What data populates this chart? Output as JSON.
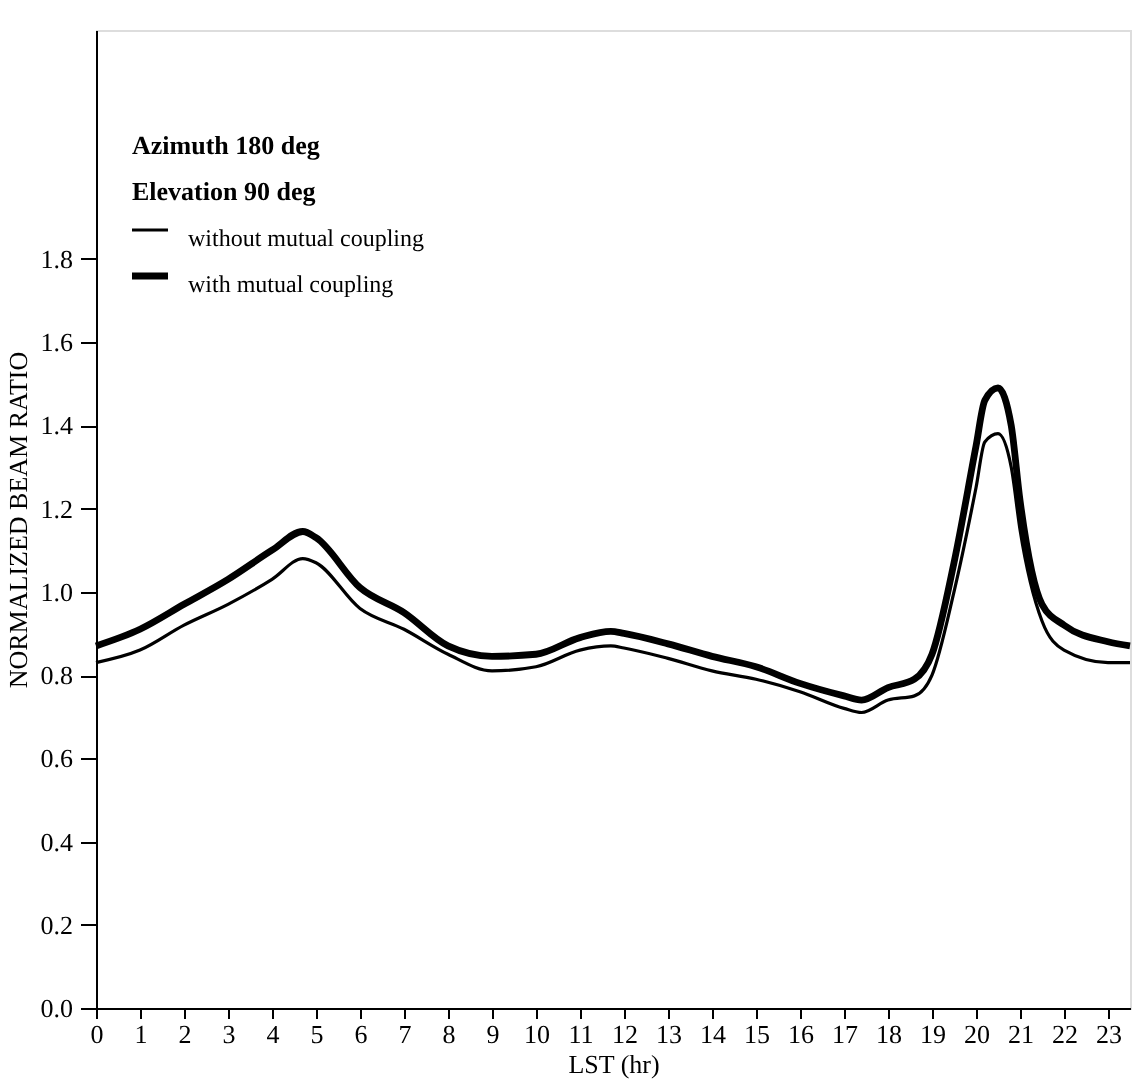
{
  "chart_data": {
    "type": "line",
    "xlabel": "LST (hr)",
    "ylabel": "NORMALIZED BEAM RATIO",
    "annotations": [
      "Azimuth   180 deg",
      "Elevation   90 deg"
    ],
    "x": [
      0,
      1,
      2,
      3,
      4,
      4.7,
      5,
      6,
      7,
      8,
      9,
      10,
      11,
      11.7,
      12,
      13,
      14,
      15,
      16,
      17,
      17.4,
      18,
      18.6,
      19,
      19.5,
      20,
      20.2,
      20.5,
      20.8,
      21,
      21.5,
      22,
      23,
      23.5
    ],
    "series": [
      {
        "name": "without mutual coupling",
        "color": "#000000",
        "values": [
          0.83,
          0.86,
          0.92,
          0.97,
          1.03,
          1.08,
          1.07,
          0.96,
          0.91,
          0.85,
          0.81,
          0.82,
          0.86,
          0.87,
          0.865,
          0.84,
          0.81,
          0.79,
          0.76,
          0.72,
          0.71,
          0.74,
          0.75,
          0.8,
          1.0,
          1.25,
          1.36,
          1.38,
          1.3,
          1.15,
          0.93,
          0.86,
          0.83,
          0.83
        ]
      },
      {
        "name": "with mutual coupling",
        "color": "#000000",
        "values": [
          0.87,
          0.91,
          0.97,
          1.03,
          1.1,
          1.145,
          1.13,
          1.01,
          0.95,
          0.87,
          0.845,
          0.85,
          0.89,
          0.905,
          0.9,
          0.875,
          0.845,
          0.82,
          0.78,
          0.75,
          0.74,
          0.77,
          0.79,
          0.85,
          1.07,
          1.35,
          1.46,
          1.49,
          1.4,
          1.22,
          0.97,
          0.92,
          0.88,
          0.87
        ]
      }
    ],
    "xlim": [
      0,
      23.5
    ],
    "xticks": [
      0,
      1,
      2,
      3,
      4,
      5,
      6,
      7,
      8,
      9,
      10,
      11,
      12,
      13,
      14,
      15,
      16,
      17,
      18,
      19,
      20,
      21,
      22,
      23
    ],
    "ylim": [
      0,
      2.35
    ],
    "yticks": [
      {
        "value": 0,
        "label": "0.0"
      },
      0.2,
      0.4,
      0.6,
      0.8,
      {
        "value": 1,
        "label": "1.0"
      },
      1.2,
      1.4,
      1.6,
      1.8
    ],
    "legend": "top left",
    "grid": false,
    "marker": "none",
    "line_style": "solid"
  }
}
